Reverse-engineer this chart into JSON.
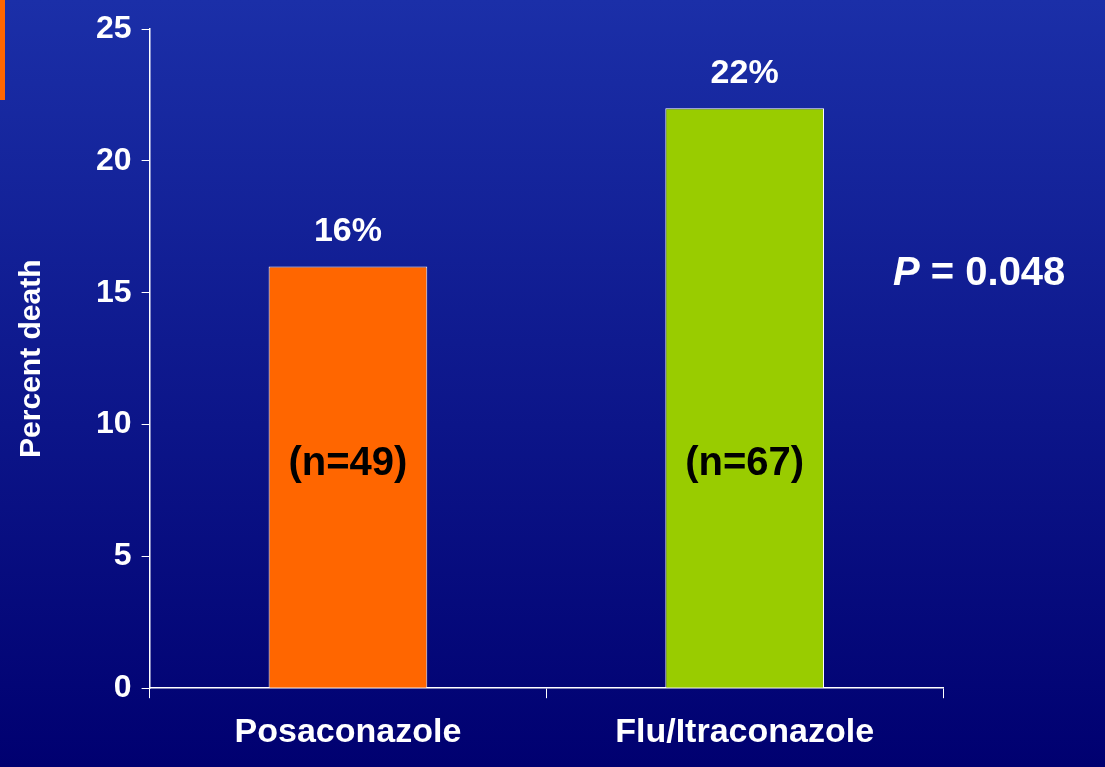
{
  "chart_data": {
    "type": "bar",
    "ylabel": "Percent death",
    "categories": [
      "Posaconazole",
      "Flu/Itraconazole"
    ],
    "values": [
      16,
      22
    ],
    "colors": [
      "#ff6600",
      "#99cc00"
    ],
    "value_labels": [
      "16%",
      "22%"
    ],
    "ylim": [
      0,
      25
    ],
    "yticks": [
      0,
      5,
      10,
      15,
      20,
      25
    ],
    "grid": false,
    "legend": false,
    "annotations": [
      "(n=49)",
      "(n=67)",
      "P = 0.048"
    ]
  }
}
